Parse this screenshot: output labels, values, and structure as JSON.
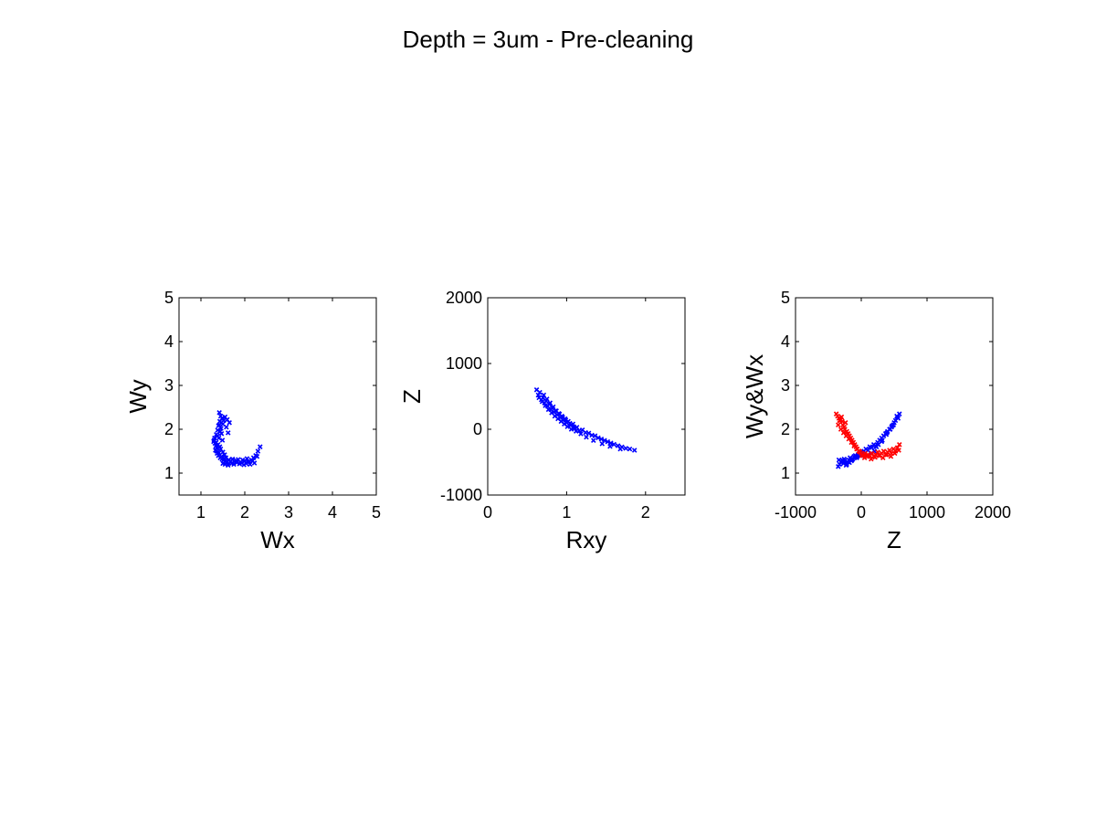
{
  "title": "Depth = 3um - Pre-cleaning",
  "chart_data": [
    {
      "type": "scatter",
      "xlabel": "Wx",
      "ylabel": "Wy",
      "xlim": [
        0.5,
        5
      ],
      "ylim": [
        0.5,
        5
      ],
      "xticks": [
        1,
        2,
        3,
        4,
        5
      ],
      "yticks": [
        1,
        2,
        3,
        4,
        5
      ],
      "grid": false,
      "series": [
        {
          "color": "#0000ff",
          "marker": "x",
          "x": [
            1.42,
            1.45,
            1.48,
            1.43,
            1.5,
            1.4,
            1.46,
            1.52,
            1.44,
            1.47,
            1.38,
            1.41,
            1.49,
            1.55,
            1.35,
            1.39,
            1.43,
            1.6,
            1.65,
            1.58,
            1.62,
            1.36,
            1.33,
            1.3,
            1.37,
            1.32,
            1.4,
            1.44,
            1.48,
            1.52,
            1.56,
            1.6,
            1.64,
            1.68,
            1.72,
            1.76,
            1.8,
            1.85,
            1.9,
            1.95,
            2.0,
            2.05,
            2.1,
            2.15,
            2.2,
            2.25,
            2.3,
            2.35,
            1.5,
            1.55,
            1.58,
            1.62,
            1.7,
            1.75,
            1.82,
            1.88,
            1.93,
            1.98,
            2.03,
            2.08,
            2.12,
            2.18,
            2.22,
            2.28,
            1.45,
            1.5,
            1.54,
            1.35,
            1.38,
            1.42,
            1.46,
            1.34,
            1.31,
            1.29,
            1.36,
            1.41,
            1.47,
            1.53,
            1.57,
            1.63
          ],
          "y": [
            2.38,
            2.3,
            2.25,
            2.18,
            2.12,
            2.08,
            2.02,
            2.2,
            1.95,
            1.9,
            1.85,
            1.8,
            1.75,
            2.28,
            1.7,
            1.65,
            1.6,
            2.22,
            2.15,
            2.05,
            1.92,
            1.58,
            1.52,
            1.75,
            1.45,
            1.68,
            1.4,
            1.35,
            1.32,
            1.3,
            1.28,
            1.25,
            1.3,
            1.27,
            1.32,
            1.26,
            1.29,
            1.31,
            1.25,
            1.3,
            1.28,
            1.33,
            1.26,
            1.3,
            1.35,
            1.4,
            1.5,
            1.6,
            1.22,
            1.2,
            1.25,
            1.18,
            1.22,
            1.2,
            1.24,
            1.21,
            1.23,
            1.19,
            1.22,
            1.25,
            1.2,
            1.28,
            1.23,
            1.38,
            1.55,
            1.48,
            1.42,
            1.88,
            1.98,
            2.1,
            2.15,
            1.62,
            1.8,
            1.72,
            1.5,
            1.46,
            1.38,
            1.33,
            1.35,
            1.3
          ]
        }
      ]
    },
    {
      "type": "scatter",
      "xlabel": "Rxy",
      "ylabel": "Z",
      "xlim": [
        0,
        2.5
      ],
      "ylim": [
        -1000,
        2000
      ],
      "xticks": [
        0,
        1,
        2
      ],
      "yticks": [
        -1000,
        0,
        1000,
        2000
      ],
      "grid": false,
      "series": [
        {
          "color": "#0000ff",
          "marker": "x",
          "x": [
            0.62,
            0.64,
            0.66,
            0.68,
            0.7,
            0.72,
            0.74,
            0.76,
            0.78,
            0.8,
            0.82,
            0.84,
            0.86,
            0.88,
            0.9,
            0.92,
            0.94,
            0.96,
            0.98,
            1.0,
            1.02,
            1.05,
            1.08,
            1.1,
            1.13,
            1.16,
            1.2,
            1.24,
            1.28,
            1.32,
            1.36,
            1.4,
            1.44,
            1.48,
            1.52,
            1.56,
            1.6,
            1.65,
            1.7,
            1.75,
            1.8,
            1.86,
            0.65,
            0.69,
            0.73,
            0.77,
            0.81,
            0.85,
            0.89,
            0.93,
            0.97,
            1.01,
            1.06,
            1.12,
            1.18,
            1.25,
            1.34,
            1.45,
            1.55,
            1.68,
            0.71,
            0.75,
            0.79,
            0.83,
            0.87,
            0.91,
            0.95,
            0.99,
            1.04,
            1.09
          ],
          "y": [
            600,
            520,
            560,
            450,
            480,
            400,
            430,
            350,
            380,
            300,
            320,
            260,
            280,
            220,
            240,
            180,
            200,
            140,
            160,
            100,
            120,
            60,
            80,
            20,
            30,
            -20,
            -10,
            -50,
            -60,
            -90,
            -100,
            -130,
            -150,
            -170,
            -190,
            -210,
            -230,
            -250,
            -270,
            -290,
            -300,
            -320,
            480,
            420,
            360,
            300,
            250,
            200,
            160,
            120,
            80,
            40,
            0,
            -30,
            -70,
            -120,
            -170,
            -220,
            -260,
            -300,
            520,
            460,
            400,
            340,
            280,
            230,
            180,
            140,
            90,
            40
          ]
        }
      ]
    },
    {
      "type": "scatter",
      "xlabel": "Z",
      "ylabel": "Wy&Wx",
      "xlim": [
        -1000,
        2000
      ],
      "ylim": [
        0.5,
        5
      ],
      "xticks": [
        -1000,
        0,
        1000,
        2000
      ],
      "yticks": [
        1,
        2,
        3,
        4,
        5
      ],
      "grid": false,
      "series": [
        {
          "color": "#0000ff",
          "marker": "x",
          "x": [
            -350,
            -330,
            -310,
            -290,
            -270,
            -250,
            -230,
            -210,
            -190,
            -170,
            -150,
            -130,
            -110,
            -90,
            -70,
            -50,
            -30,
            -10,
            10,
            40,
            70,
            100,
            130,
            160,
            190,
            220,
            250,
            280,
            310,
            340,
            370,
            400,
            430,
            460,
            490,
            520,
            550,
            580,
            -340,
            -300,
            -260,
            -220,
            -180,
            -140,
            -100,
            -60,
            200,
            260,
            320,
            380,
            440,
            500,
            560,
            150,
            230,
            310,
            390,
            470,
            540
          ],
          "y": [
            1.15,
            1.2,
            1.25,
            1.3,
            1.22,
            1.28,
            1.18,
            1.25,
            1.3,
            1.35,
            1.28,
            1.32,
            1.38,
            1.4,
            1.35,
            1.42,
            1.45,
            1.4,
            1.48,
            1.5,
            1.55,
            1.52,
            1.6,
            1.58,
            1.65,
            1.62,
            1.7,
            1.75,
            1.8,
            1.85,
            1.9,
            1.95,
            2.0,
            2.05,
            2.1,
            2.2,
            2.28,
            2.35,
            1.3,
            1.26,
            1.32,
            1.2,
            1.24,
            1.3,
            1.35,
            1.38,
            1.5,
            1.65,
            1.75,
            1.88,
            2.0,
            2.15,
            2.25,
            1.45,
            1.6,
            1.72,
            1.92,
            2.08,
            2.3
          ]
        },
        {
          "color": "#ff0000",
          "marker": "x",
          "x": [
            -380,
            -360,
            -340,
            -320,
            -300,
            -280,
            -260,
            -240,
            -220,
            -200,
            -180,
            -160,
            -140,
            -120,
            -100,
            -80,
            -60,
            -40,
            -20,
            0,
            20,
            40,
            60,
            80,
            100,
            130,
            160,
            190,
            220,
            250,
            280,
            310,
            340,
            370,
            400,
            430,
            460,
            490,
            520,
            550,
            580,
            -350,
            -310,
            -270,
            -230,
            -190,
            -150,
            -110,
            -70,
            -30,
            10,
            50,
            90,
            150,
            210,
            270,
            330,
            390,
            450,
            510,
            570,
            -330,
            -290,
            -250,
            -210
          ],
          "y": [
            2.35,
            2.3,
            2.25,
            2.2,
            2.28,
            2.1,
            2.05,
            2.15,
            1.95,
            1.9,
            1.85,
            1.8,
            1.75,
            1.7,
            1.65,
            1.6,
            1.55,
            1.5,
            1.48,
            1.45,
            1.42,
            1.4,
            1.45,
            1.38,
            1.42,
            1.4,
            1.45,
            1.38,
            1.42,
            1.48,
            1.4,
            1.45,
            1.5,
            1.42,
            1.48,
            1.52,
            1.45,
            1.55,
            1.5,
            1.58,
            1.65,
            2.1,
            2.0,
            1.92,
            1.85,
            1.78,
            1.7,
            1.62,
            1.55,
            1.5,
            1.4,
            1.35,
            1.38,
            1.32,
            1.36,
            1.4,
            1.35,
            1.42,
            1.38,
            1.45,
            1.52,
            2.2,
            2.18,
            2.0,
            1.88
          ]
        }
      ]
    }
  ]
}
